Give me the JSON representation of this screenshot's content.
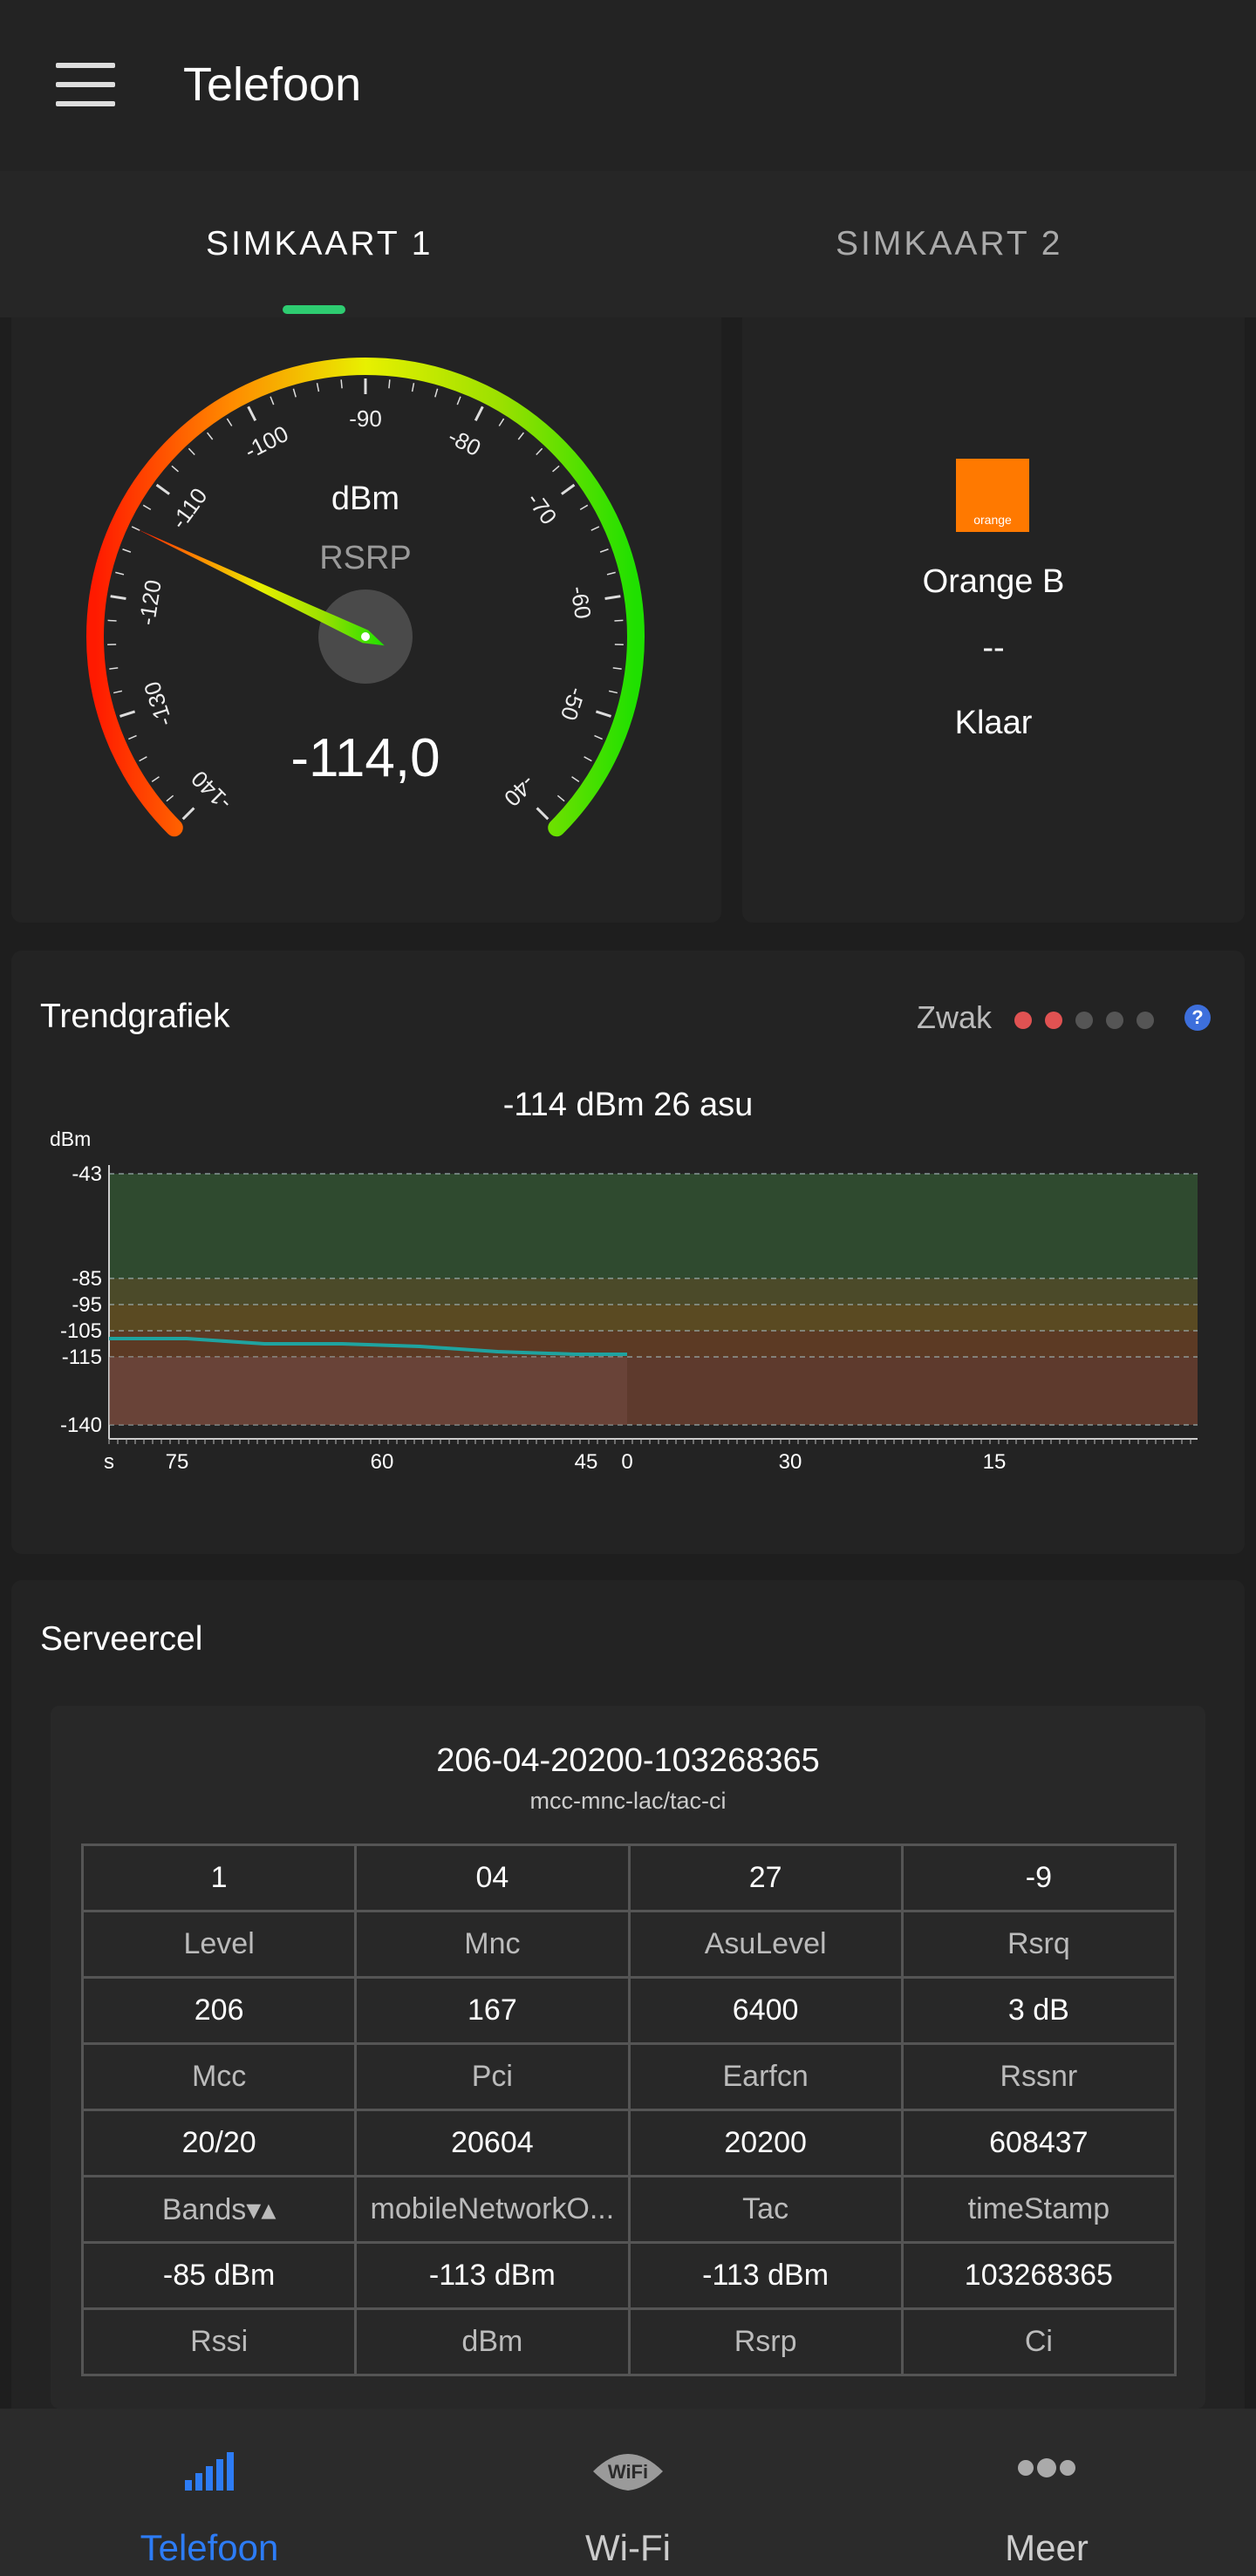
{
  "app": {
    "title": "Telefoon"
  },
  "tabs": [
    {
      "label": "SIMKAART 1",
      "active": true
    },
    {
      "label": "SIMKAART 2",
      "active": false
    }
  ],
  "gauge": {
    "unit": "dBm",
    "metric": "RSRP",
    "value": -114.0,
    "value_text": "-114,0",
    "ticks": [
      "-140",
      "-130",
      "-120",
      "-110",
      "-100",
      "-90",
      "-80",
      "-70",
      "-60",
      "-50",
      "-40"
    ],
    "range": [
      -140,
      -40
    ]
  },
  "operator": {
    "logo_text": "orange",
    "name": "Orange B",
    "line2": "--",
    "status": "Klaar",
    "brand_color": "#ff7900"
  },
  "trend": {
    "title": "Trendgrafiek",
    "strength_label": "Zwak",
    "strength_level": 2,
    "strength_max": 5,
    "help": "?",
    "readout": "-114 dBm  26 asu"
  },
  "chart_data": {
    "type": "line",
    "ylabel": "dBm",
    "yticks": [
      -43,
      -85,
      -95,
      -105,
      -115,
      -140
    ],
    "ylim": [
      -140,
      -43
    ],
    "xlabel_start": "s",
    "xticks_left": [
      "75",
      "60",
      "45"
    ],
    "xticks_right": [
      "0",
      "30",
      "15"
    ],
    "bands": [
      {
        "from": -85,
        "to": -43,
        "color": "#2f4a2f"
      },
      {
        "from": -95,
        "to": -85,
        "color": "#4b4a29"
      },
      {
        "from": -105,
        "to": -95,
        "color": "#5a4a22"
      },
      {
        "from": -115,
        "to": -105,
        "color": "#5c3a24"
      },
      {
        "from": -140,
        "to": -115,
        "color": "#5e3a2d"
      }
    ],
    "series": [
      {
        "x": [
          80,
          74,
          68,
          62,
          56,
          50,
          44,
          40
        ],
        "y": [
          -108,
          -108,
          -110,
          -110,
          -111,
          -113,
          -114,
          -114
        ],
        "color": "#1fa3a0"
      }
    ]
  },
  "server": {
    "title": "Serveercel",
    "cell_id": "206-04-20200-103268365",
    "cell_format": "mcc-mnc-lac/tac-ci",
    "rows": [
      {
        "type": "val",
        "cells": [
          "1",
          "04",
          "27",
          "-9"
        ]
      },
      {
        "type": "lab",
        "cells": [
          "Level",
          "Mnc",
          "AsuLevel",
          "Rsrq"
        ]
      },
      {
        "type": "val",
        "cells": [
          "206",
          "167",
          "6400",
          "3 dB"
        ]
      },
      {
        "type": "lab",
        "cells": [
          "Mcc",
          "Pci",
          "Earfcn",
          "Rssnr"
        ]
      },
      {
        "type": "val",
        "cells": [
          "20/20",
          "20604",
          "20200",
          "608437"
        ]
      },
      {
        "type": "lab",
        "cells": [
          "Bands▾▴",
          "mobileNetworkO...",
          "Tac",
          "timeStamp"
        ]
      },
      {
        "type": "val",
        "cells": [
          "-85 dBm",
          "-113 dBm",
          "-113 dBm",
          "103268365"
        ]
      },
      {
        "type": "lab",
        "cells": [
          "Rssi",
          "dBm",
          "Rsrp",
          "Ci"
        ]
      }
    ]
  },
  "nav": [
    {
      "label": "Telefoon",
      "icon": "signal-bars-icon",
      "active": true
    },
    {
      "label": "Wi-Fi",
      "icon": "wifi-icon",
      "active": false
    },
    {
      "label": "Meer",
      "icon": "more-dots-icon",
      "active": false
    }
  ],
  "colors": {
    "accent": "#2d7cf6",
    "tab_indicator": "#2ecc71",
    "weak_dot": "#e05252",
    "inactive_dot": "#555555"
  }
}
